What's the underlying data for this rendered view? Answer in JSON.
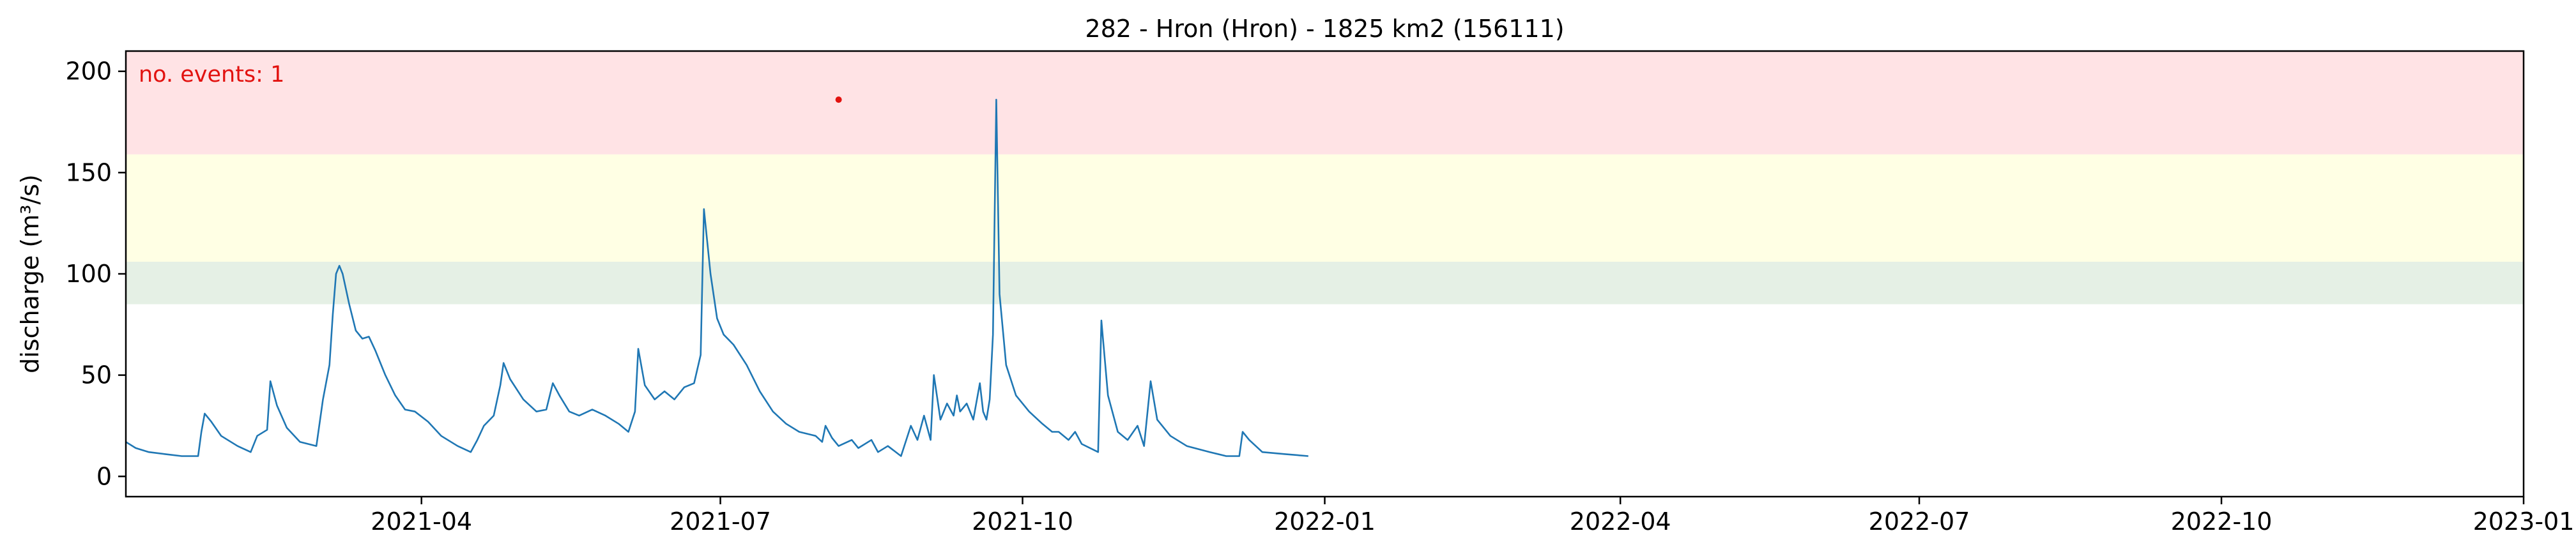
{
  "chart_data": {
    "type": "line",
    "title": "282 - Hron (Hron) - 1825 km2 (156111)",
    "xlabel": "",
    "ylabel": "discharge (m³/s)",
    "xlim": [
      "2021-01-01",
      "2023-01-01"
    ],
    "ylim": [
      -10,
      210
    ],
    "yticks": [
      0,
      50,
      100,
      150,
      200
    ],
    "xticks": [
      "2021-04-01",
      "2021-07-01",
      "2021-10-01",
      "2022-01-01",
      "2022-04-01",
      "2022-07-01",
      "2022-10-01",
      "2023-01-01"
    ],
    "xtick_labels": [
      "2021-04",
      "2021-07",
      "2021-10",
      "2022-01",
      "2022-04",
      "2022-07",
      "2022-10",
      "2023-01"
    ],
    "grid": false,
    "threshold_bands": [
      {
        "from": 85,
        "to": 106,
        "color": "#e5f0e5"
      },
      {
        "from": 106,
        "to": 159,
        "color": "#ffffe4"
      },
      {
        "from": 159,
        "to": 210,
        "color": "#ffe3e5"
      }
    ],
    "annotation": {
      "text": "no. events: 1",
      "color": "#e2120f"
    },
    "events": [
      {
        "x": "2021-08-06",
        "y": 186,
        "color": "#e2120f"
      }
    ],
    "series": [
      {
        "color": "#1f77b4",
        "points": [
          [
            "2021-01-01",
            17
          ],
          [
            "2021-01-04",
            14
          ],
          [
            "2021-01-08",
            12
          ],
          [
            "2021-01-13",
            11
          ],
          [
            "2021-01-18",
            10
          ],
          [
            "2021-01-23",
            10
          ],
          [
            "2021-01-24",
            22
          ],
          [
            "2021-01-25",
            31
          ],
          [
            "2021-01-27",
            27
          ],
          [
            "2021-01-30",
            20
          ],
          [
            "2021-02-04",
            15
          ],
          [
            "2021-02-08",
            12
          ],
          [
            "2021-02-10",
            20
          ],
          [
            "2021-02-13",
            23
          ],
          [
            "2021-02-14",
            47
          ],
          [
            "2021-02-16",
            35
          ],
          [
            "2021-02-19",
            24
          ],
          [
            "2021-02-23",
            17
          ],
          [
            "2021-02-28",
            15
          ],
          [
            "2021-03-02",
            38
          ],
          [
            "2021-03-04",
            55
          ],
          [
            "2021-03-05",
            80
          ],
          [
            "2021-03-06",
            100
          ],
          [
            "2021-03-07",
            104
          ],
          [
            "2021-03-08",
            100
          ],
          [
            "2021-03-10",
            85
          ],
          [
            "2021-03-12",
            72
          ],
          [
            "2021-03-14",
            68
          ],
          [
            "2021-03-16",
            69
          ],
          [
            "2021-03-18",
            62
          ],
          [
            "2021-03-21",
            50
          ],
          [
            "2021-03-24",
            40
          ],
          [
            "2021-03-27",
            33
          ],
          [
            "2021-03-30",
            32
          ],
          [
            "2021-04-03",
            27
          ],
          [
            "2021-04-07",
            20
          ],
          [
            "2021-04-12",
            15
          ],
          [
            "2021-04-16",
            12
          ],
          [
            "2021-04-18",
            18
          ],
          [
            "2021-04-20",
            25
          ],
          [
            "2021-04-23",
            30
          ],
          [
            "2021-04-25",
            45
          ],
          [
            "2021-04-26",
            56
          ],
          [
            "2021-04-28",
            48
          ],
          [
            "2021-05-02",
            38
          ],
          [
            "2021-05-06",
            32
          ],
          [
            "2021-05-09",
            33
          ],
          [
            "2021-05-11",
            46
          ],
          [
            "2021-05-13",
            40
          ],
          [
            "2021-05-16",
            32
          ],
          [
            "2021-05-19",
            30
          ],
          [
            "2021-05-23",
            33
          ],
          [
            "2021-05-27",
            30
          ],
          [
            "2021-05-31",
            26
          ],
          [
            "2021-06-03",
            22
          ],
          [
            "2021-06-05",
            32
          ],
          [
            "2021-06-06",
            63
          ],
          [
            "2021-06-08",
            45
          ],
          [
            "2021-06-11",
            38
          ],
          [
            "2021-06-14",
            42
          ],
          [
            "2021-06-17",
            38
          ],
          [
            "2021-06-20",
            44
          ],
          [
            "2021-06-23",
            46
          ],
          [
            "2021-06-25",
            60
          ],
          [
            "2021-06-26",
            132
          ],
          [
            "2021-06-28",
            100
          ],
          [
            "2021-06-30",
            78
          ],
          [
            "2021-07-02",
            70
          ],
          [
            "2021-07-05",
            65
          ],
          [
            "2021-07-09",
            55
          ],
          [
            "2021-07-13",
            42
          ],
          [
            "2021-07-17",
            32
          ],
          [
            "2021-07-21",
            26
          ],
          [
            "2021-07-25",
            22
          ],
          [
            "2021-07-30",
            20
          ],
          [
            "2021-08-01",
            17
          ],
          [
            "2021-08-02",
            25
          ],
          [
            "2021-08-04",
            19
          ],
          [
            "2021-08-06",
            15
          ],
          [
            "2021-08-10",
            18
          ],
          [
            "2021-08-12",
            14
          ],
          [
            "2021-08-16",
            18
          ],
          [
            "2021-08-18",
            12
          ],
          [
            "2021-08-21",
            15
          ],
          [
            "2021-08-25",
            10
          ],
          [
            "2021-08-28",
            25
          ],
          [
            "2021-08-30",
            18
          ],
          [
            "2021-09-01",
            30
          ],
          [
            "2021-09-03",
            18
          ],
          [
            "2021-09-04",
            50
          ],
          [
            "2021-09-06",
            28
          ],
          [
            "2021-09-08",
            36
          ],
          [
            "2021-09-10",
            30
          ],
          [
            "2021-09-11",
            40
          ],
          [
            "2021-09-12",
            32
          ],
          [
            "2021-09-14",
            36
          ],
          [
            "2021-09-16",
            28
          ],
          [
            "2021-09-18",
            46
          ],
          [
            "2021-09-19",
            32
          ],
          [
            "2021-09-20",
            28
          ],
          [
            "2021-09-21",
            38
          ],
          [
            "2021-09-22",
            70
          ],
          [
            "2021-09-23",
            186
          ],
          [
            "2021-09-24",
            90
          ],
          [
            "2021-09-26",
            55
          ],
          [
            "2021-09-29",
            40
          ],
          [
            "2021-10-03",
            32
          ],
          [
            "2021-10-07",
            26
          ],
          [
            "2021-10-10",
            22
          ],
          [
            "2021-10-12",
            22
          ],
          [
            "2021-10-15",
            18
          ],
          [
            "2021-10-17",
            22
          ],
          [
            "2021-10-19",
            16
          ],
          [
            "2021-10-24",
            12
          ],
          [
            "2021-10-25",
            77
          ],
          [
            "2021-10-27",
            40
          ],
          [
            "2021-10-30",
            22
          ],
          [
            "2021-11-02",
            18
          ],
          [
            "2021-11-05",
            25
          ],
          [
            "2021-11-07",
            15
          ],
          [
            "2021-11-09",
            47
          ],
          [
            "2021-11-11",
            28
          ],
          [
            "2021-11-15",
            20
          ],
          [
            "2021-11-20",
            15
          ],
          [
            "2021-11-27",
            12
          ],
          [
            "2021-12-02",
            10
          ],
          [
            "2021-12-06",
            10
          ],
          [
            "2021-12-07",
            22
          ],
          [
            "2021-12-09",
            18
          ],
          [
            "2021-12-13",
            12
          ],
          [
            "2021-12-20",
            11
          ],
          [
            "2021-12-27",
            10
          ]
        ]
      }
    ]
  }
}
